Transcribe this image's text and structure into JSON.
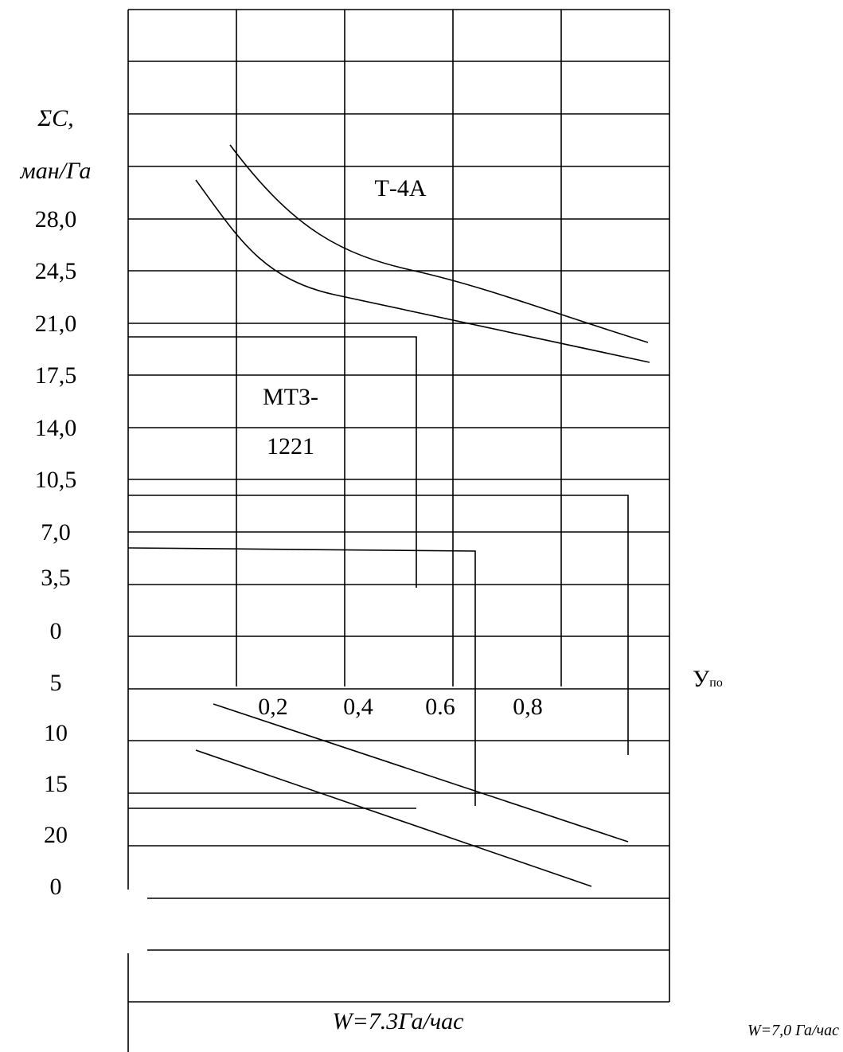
{
  "axis_title": [
    "ΣC,",
    "ман/Га"
  ],
  "y_labels": [
    "28,0",
    "24,5",
    "21,0",
    "17,5",
    "14,0",
    "10,5",
    "7,0",
    "3,5",
    "0",
    "5",
    "10",
    "15",
    "20",
    "0"
  ],
  "x_labels": [
    "0,2",
    "0,4",
    "0.6",
    "0,8"
  ],
  "curve_labels": [
    "Т-4А",
    "МТЗ-",
    "1221"
  ],
  "x_axis_label": {
    "main": "У",
    "sub": "по"
  },
  "footer": [
    "W=7.3Га/час",
    "W=7,0 Га/час"
  ]
}
